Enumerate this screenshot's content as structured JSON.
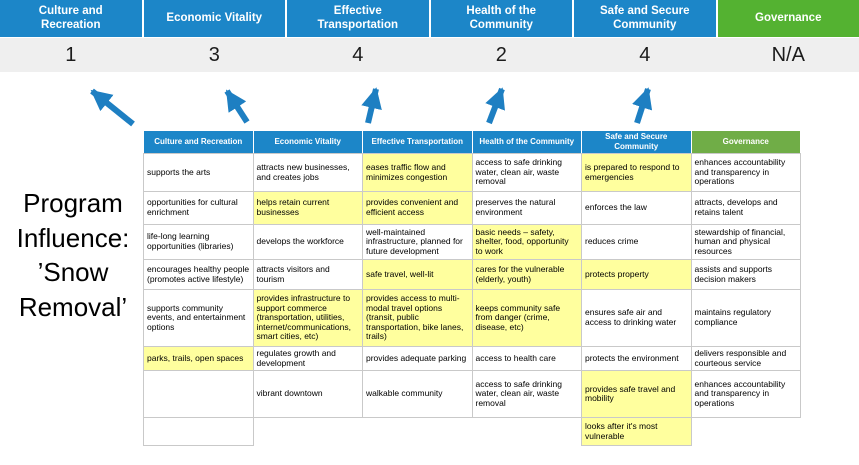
{
  "title": "Program Influence: ’Snow Removal’",
  "colors": {
    "header_blue": "#1C86C8",
    "header_green": "#54B231",
    "table_green": "#70AD47",
    "highlight_yellow": "#FFFF9E",
    "score_band": "#EFEFEF",
    "arrow_blue": "#1E7FC2",
    "grid_line": "#C9C9C9"
  },
  "summary": {
    "columns": [
      {
        "label": "Culture and Recreation",
        "score": "1",
        "theme": "blue"
      },
      {
        "label": "Economic Vitality",
        "score": "3",
        "theme": "blue"
      },
      {
        "label": "Effective Transportation",
        "score": "4",
        "theme": "blue"
      },
      {
        "label": "Health of the Community",
        "score": "2",
        "theme": "blue"
      },
      {
        "label": "Safe and Secure Community",
        "score": "4",
        "theme": "blue"
      },
      {
        "label": "Governance",
        "score": "N/A",
        "theme": "green"
      }
    ]
  },
  "matrix": {
    "headers": [
      {
        "label": "Culture and Recreation",
        "theme": "blue"
      },
      {
        "label": "Economic Vitality",
        "theme": "blue"
      },
      {
        "label": "Effective Transportation",
        "theme": "blue"
      },
      {
        "label": "Health of the Community",
        "theme": "blue"
      },
      {
        "label": "Safe and Secure Community",
        "theme": "blue"
      },
      {
        "label": "Governance",
        "theme": "green"
      }
    ],
    "rows": [
      [
        {
          "text": "supports the arts",
          "highlight": false
        },
        {
          "text": "attracts new businesses, and creates jobs",
          "highlight": false
        },
        {
          "text": "eases traffic flow and minimizes congestion",
          "highlight": true
        },
        {
          "text": "access to safe drinking water, clean air, waste removal",
          "highlight": false
        },
        {
          "text": "is prepared to respond to emergencies",
          "highlight": true
        },
        {
          "text": "enhances accountability and transparency in operations",
          "highlight": false
        }
      ],
      [
        {
          "text": "opportunities for cultural enrichment",
          "highlight": false
        },
        {
          "text": "helps retain current businesses",
          "highlight": true
        },
        {
          "text": "provides convenient and efficient access",
          "highlight": true
        },
        {
          "text": "preserves the natural environment",
          "highlight": false
        },
        {
          "text": "enforces the law",
          "highlight": false
        },
        {
          "text": "attracts, develops and retains talent",
          "highlight": false
        }
      ],
      [
        {
          "text": "life-long learning opportunities (libraries)",
          "highlight": false
        },
        {
          "text": "develops the workforce",
          "highlight": false
        },
        {
          "text": "well-maintained infrastructure, planned for future development",
          "highlight": false
        },
        {
          "text": "basic needs – safety, shelter, food, opportunity to work",
          "highlight": true
        },
        {
          "text": "reduces crime",
          "highlight": false
        },
        {
          "text": "stewardship of financial, human and physical resources",
          "highlight": false
        }
      ],
      [
        {
          "text": "encourages healthy people (promotes active lifestyle)",
          "highlight": false
        },
        {
          "text": "attracts visitors and tourism",
          "highlight": false
        },
        {
          "text": "safe travel, well-lit",
          "highlight": true
        },
        {
          "text": "cares for the vulnerable (elderly, youth)",
          "highlight": true
        },
        {
          "text": "protects property",
          "highlight": true
        },
        {
          "text": "assists and supports decision makers",
          "highlight": false
        }
      ],
      [
        {
          "text": "supports community events, and entertainment options",
          "highlight": false
        },
        {
          "text": "provides infrastructure to support commerce (transportation, utilities, internet/communications, smart cities, etc)",
          "highlight": true
        },
        {
          "text": "provides access to multi-modal travel options (transit, public transportation, bike lanes, trails)",
          "highlight": true
        },
        {
          "text": "keeps community safe from danger (crime, disease, etc)",
          "highlight": true
        },
        {
          "text": "ensures safe air and access to drinking water",
          "highlight": false
        },
        {
          "text": "maintains regulatory compliance",
          "highlight": false
        }
      ],
      [
        {
          "text": "parks, trails, open spaces",
          "highlight": true
        },
        {
          "text": "regulates growth and development",
          "highlight": false
        },
        {
          "text": "provides adequate parking",
          "highlight": false
        },
        {
          "text": "access to health care",
          "highlight": false
        },
        {
          "text": "protects the environment",
          "highlight": false
        },
        {
          "text": "delivers responsible and courteous service",
          "highlight": false
        }
      ],
      [
        {
          "text": "",
          "highlight": false
        },
        {
          "text": "vibrant downtown",
          "highlight": false
        },
        {
          "text": "walkable community",
          "highlight": false
        },
        {
          "text": "access to safe drinking water, clean air, waste removal",
          "highlight": false
        },
        {
          "text": "provides safe travel and mobility",
          "highlight": true
        },
        {
          "text": "enhances accountability and transparency in operations",
          "highlight": false
        }
      ],
      [
        {
          "text": "",
          "highlight": false
        },
        null,
        null,
        null,
        {
          "text": "looks after it's most vulnerable",
          "highlight": true
        },
        null
      ]
    ]
  }
}
